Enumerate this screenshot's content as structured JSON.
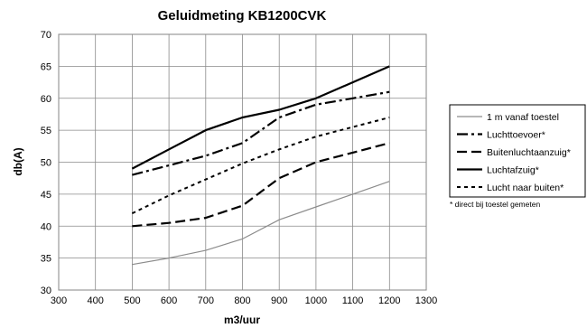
{
  "chart_data": {
    "type": "line",
    "title": "Geluidmeting KB1200CVK",
    "xlabel": "m3/uur",
    "ylabel": "db(A)",
    "xlim": [
      300,
      1300
    ],
    "ylim": [
      30,
      70
    ],
    "xticks": [
      300,
      400,
      500,
      600,
      700,
      800,
      900,
      1000,
      1100,
      1200,
      1300
    ],
    "yticks": [
      30,
      35,
      40,
      45,
      50,
      55,
      60,
      65,
      70
    ],
    "grid": true,
    "legend_position": "right",
    "x": [
      500,
      600,
      700,
      800,
      900,
      1000,
      1100,
      1200
    ],
    "series": [
      {
        "name": "1 m vanaf toestel",
        "values": [
          34,
          35,
          36.2,
          38,
          41,
          43,
          45,
          47
        ],
        "style": "solid-thin",
        "color": "#8c8c8c"
      },
      {
        "name": "Luchttoevoer*",
        "values": [
          48,
          49.5,
          51,
          53,
          57,
          59,
          60,
          61
        ],
        "style": "dash-dot",
        "color": "#000000"
      },
      {
        "name": "Buitenluchtaanzuig*",
        "values": [
          40,
          40.5,
          41.3,
          43.2,
          47.5,
          50,
          51.5,
          53
        ],
        "style": "long-dash",
        "color": "#000000"
      },
      {
        "name": "Luchtafzuig*",
        "values": [
          49,
          52,
          55,
          57,
          58.2,
          60,
          62.5,
          65
        ],
        "style": "solid-thick",
        "color": "#000000"
      },
      {
        "name": "Lucht naar buiten*",
        "values": [
          42,
          44.8,
          47.3,
          49.8,
          52,
          54,
          55.5,
          57
        ],
        "style": "short-dash",
        "color": "#000000"
      }
    ],
    "footnote": "* direct bij toestel gemeten"
  }
}
